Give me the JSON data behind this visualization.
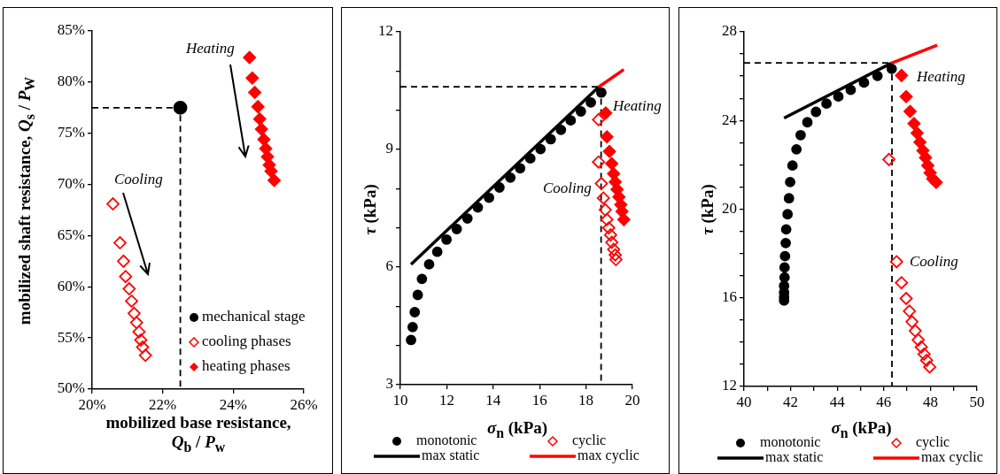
{
  "chart_data": [
    {
      "type": "scatter",
      "xlabel": "mobilized base resistance, Q$_{b}$ / P$_{w}$",
      "ylabel": "mobilized shaft resistance, Q$_{s}$ / P$_{W}$",
      "xlim": [
        20,
        26
      ],
      "xticks": [
        {
          "value": 20,
          "label": "20%"
        },
        {
          "value": 22,
          "label": "22%"
        },
        {
          "value": 24,
          "label": "24%"
        },
        {
          "value": 26,
          "label": "26%"
        }
      ],
      "ylim": [
        50,
        85
      ],
      "yticks": [
        {
          "value": 50,
          "label": "50%"
        },
        {
          "value": 55,
          "label": "55%"
        },
        {
          "value": 60,
          "label": "60%"
        },
        {
          "value": 65,
          "label": "65%"
        },
        {
          "value": 70,
          "label": "70%"
        },
        {
          "value": 75,
          "label": "75%"
        },
        {
          "value": 80,
          "label": "80%"
        },
        {
          "value": 85,
          "label": "85%"
        }
      ],
      "legend": "bottom right",
      "annotations": [
        "Heating",
        "Cooling"
      ],
      "series": [
        {
          "name": "mechanical stage",
          "color": "#000000",
          "marker": "circle",
          "x": [
            22.5
          ],
          "values": [
            77.5
          ]
        },
        {
          "name": "cooling phases",
          "color": "#ff0000",
          "marker": "diamond",
          "x": [
            20.59,
            20.79,
            20.89,
            20.95,
            21.05,
            21.12,
            21.19,
            21.26,
            21.33,
            21.38,
            21.43,
            21.51
          ],
          "values": [
            68.1,
            64.3,
            62.5,
            61.0,
            59.8,
            58.6,
            57.4,
            56.5,
            55.6,
            54.8,
            54.1,
            53.3
          ]
        },
        {
          "name": "heating phases",
          "color": "#ff0000",
          "marker": "diamond",
          "x": [
            24.46,
            24.54,
            24.61,
            24.7,
            24.75,
            24.8,
            24.87,
            24.92,
            24.97,
            25.02,
            25.07,
            25.16
          ],
          "values": [
            82.4,
            80.4,
            79.0,
            77.6,
            76.4,
            75.4,
            74.4,
            73.5,
            72.7,
            71.9,
            71.3,
            70.4
          ]
        },
        {
          "type": "line",
          "color": "#000000",
          "marker": "none",
          "line_style": "dashed",
          "x": [
            20,
            22.5,
            22.5
          ],
          "values": [
            77.5,
            77.5,
            50
          ]
        }
      ]
    },
    {
      "type": "scatter",
      "xlabel": "σ$_{n}$ (kPa)",
      "ylabel": "τ (kPa)",
      "xlim": [
        10,
        20
      ],
      "xticks": [
        10,
        12,
        14,
        16,
        18,
        20
      ],
      "ylim": [
        3,
        12
      ],
      "yticks": [
        3,
        {
          "value": 4,
          "label": null
        },
        {
          "value": 5,
          "label": null
        },
        6,
        {
          "value": 7,
          "label": null
        },
        {
          "value": 8,
          "label": null
        },
        9,
        {
          "value": 10,
          "label": null
        },
        {
          "value": 11,
          "label": null
        },
        12
      ],
      "legend": "bottom",
      "annotations": [
        "Heating",
        "Cooling"
      ],
      "series": [
        {
          "name": "monotonic",
          "color": "#000000",
          "marker": "circle",
          "x": [
            10.46,
            10.53,
            10.62,
            10.75,
            10.93,
            11.24,
            11.59,
            11.99,
            12.43,
            12.89,
            13.34,
            13.82,
            14.27,
            14.74,
            15.16,
            15.6,
            16.04,
            16.48,
            16.92,
            17.34,
            17.78,
            18.21,
            18.66
          ],
          "values": [
            4.14,
            4.47,
            4.85,
            5.29,
            5.7,
            6.07,
            6.39,
            6.7,
            6.97,
            7.24,
            7.52,
            7.77,
            8.03,
            8.28,
            8.52,
            8.77,
            9.01,
            9.26,
            9.5,
            9.74,
            9.97,
            10.2,
            10.45
          ]
        },
        {
          "name": "cyclic",
          "color": "#ff0000",
          "marker": "diamond",
          "x": [
            18.54,
            18.54,
            18.66,
            18.75,
            18.83,
            18.9,
            18.98,
            19.06,
            19.11,
            19.19,
            19.26,
            19.29
          ],
          "values": [
            9.76,
            8.68,
            8.13,
            7.76,
            7.46,
            7.21,
            7.0,
            6.82,
            6.63,
            6.45,
            6.31,
            6.19
          ]
        },
        {
          "name": "max static",
          "type": "line",
          "color": "#000000",
          "marker": "none",
          "line_style": "solid",
          "x": [
            10.46,
            18.54
          ],
          "values": [
            6.07,
            10.59
          ]
        },
        {
          "name": "max cyclic",
          "type": "line",
          "color": "#ff0000",
          "marker": "none",
          "line_style": "solid",
          "x": [
            18.54,
            19.63
          ],
          "values": [
            10.59,
            11.04
          ]
        },
        {
          "color": "#ff0000",
          "marker": "diamond",
          "x": [
            18.85,
            18.9,
            19.01,
            19.11,
            19.19,
            19.26,
            19.34,
            19.42,
            19.5,
            19.55,
            19.63
          ],
          "values": [
            9.93,
            9.32,
            8.95,
            8.64,
            8.38,
            8.17,
            7.98,
            7.79,
            7.59,
            7.42,
            7.21
          ]
        },
        {
          "type": "line",
          "color": "#000000",
          "marker": "none",
          "line_style": "dashed",
          "x": [
            10,
            18.65,
            18.65
          ],
          "values": [
            10.6,
            10.6,
            3
          ]
        }
      ]
    },
    {
      "type": "scatter",
      "xlabel": "σ$_{n}$ (kPa)",
      "ylabel": "τ (kPa)",
      "xlim": [
        40,
        50
      ],
      "xticks": [
        40,
        {
          "value": 41,
          "label": null
        },
        42,
        {
          "value": 43,
          "label": null
        },
        44,
        {
          "value": 45,
          "label": null
        },
        46,
        {
          "value": 47,
          "label": null
        },
        48,
        {
          "value": 49,
          "label": null
        },
        50
      ],
      "ylim": [
        12,
        28
      ],
      "yticks": [
        12,
        {
          "value": 13,
          "label": null
        },
        {
          "value": 14,
          "label": null
        },
        {
          "value": 15,
          "label": null
        },
        16,
        {
          "value": 17,
          "label": null
        },
        {
          "value": 18,
          "label": null
        },
        {
          "value": 19,
          "label": null
        },
        20,
        {
          "value": 21,
          "label": null
        },
        {
          "value": 22,
          "label": null
        },
        {
          "value": 23,
          "label": null
        },
        24,
        {
          "value": 25,
          "label": null
        },
        {
          "value": 26,
          "label": null
        },
        {
          "value": 27,
          "label": null
        },
        28
      ],
      "legend": "bottom",
      "annotations": [
        "Heating",
        "Cooling"
      ],
      "series": [
        {
          "name": "monotonic",
          "color": "#000000",
          "marker": "circle",
          "x": [
            41.72,
            41.72,
            41.72,
            41.72,
            41.74,
            41.74,
            41.76,
            41.79,
            41.81,
            41.87,
            41.93,
            41.98,
            42.08,
            42.25,
            42.43,
            42.72,
            43.09,
            43.54,
            44.05,
            44.58,
            45.15,
            45.73,
            46.34
          ],
          "values": [
            15.88,
            16.04,
            16.24,
            16.54,
            16.92,
            17.37,
            17.88,
            18.47,
            19.09,
            19.77,
            20.49,
            21.22,
            21.97,
            22.7,
            23.34,
            23.92,
            24.39,
            24.76,
            25.08,
            25.38,
            25.71,
            26.01,
            26.33
          ]
        },
        {
          "name": "cyclic",
          "color": "#ff0000",
          "marker": "diamond",
          "x": [
            46.22,
            46.55,
            46.76,
            46.96,
            47.1,
            47.21,
            47.35,
            47.48,
            47.61,
            47.73,
            47.84,
            47.97
          ],
          "values": [
            22.24,
            17.63,
            16.68,
            15.97,
            15.4,
            14.92,
            14.51,
            14.1,
            13.78,
            13.46,
            13.18,
            12.88
          ]
        },
        {
          "name": "max static",
          "type": "line",
          "color": "#000000",
          "marker": "none",
          "line_style": "solid",
          "x": [
            41.72,
            46.31
          ],
          "values": [
            24.11,
            26.58
          ]
        },
        {
          "name": "max cyclic",
          "type": "line",
          "color": "#ff0000",
          "marker": "none",
          "line_style": "solid",
          "x": [
            46.31,
            48.29
          ],
          "values": [
            26.58,
            27.4
          ]
        },
        {
          "color": "#ff0000",
          "marker": "diamond",
          "x": [
            46.76,
            46.96,
            47.13,
            47.3,
            47.43,
            47.55,
            47.68,
            47.79,
            47.89,
            47.99,
            48.1,
            48.25
          ],
          "values": [
            26.03,
            25.08,
            24.41,
            23.86,
            23.43,
            23.02,
            22.64,
            22.32,
            21.97,
            21.64,
            21.37,
            21.21
          ]
        },
        {
          "type": "line",
          "color": "#000000",
          "marker": "none",
          "line_style": "dashed",
          "x": [
            40,
            46.35,
            46.35
          ],
          "values": [
            26.6,
            26.6,
            12
          ]
        }
      ]
    }
  ]
}
